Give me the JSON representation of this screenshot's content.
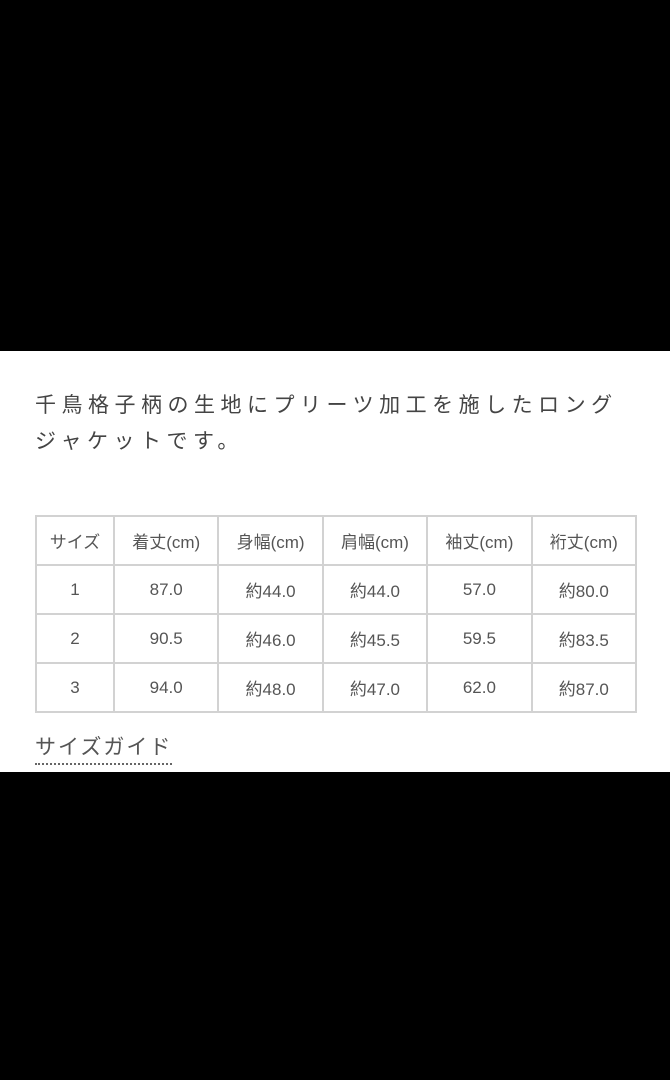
{
  "description": "千鳥格子柄の生地にプリーツ加工を施したロングジャケットです。",
  "size_table": {
    "headers": [
      "サイズ",
      "着丈(cm)",
      "身幅(cm)",
      "肩幅(cm)",
      "袖丈(cm)",
      "裄丈(cm)"
    ],
    "rows": [
      [
        "1",
        "87.0",
        "約44.0",
        "約44.0",
        "57.0",
        "約80.0"
      ],
      [
        "2",
        "90.5",
        "約46.0",
        "約45.5",
        "59.5",
        "約83.5"
      ],
      [
        "3",
        "94.0",
        "約48.0",
        "約47.0",
        "62.0",
        "約87.0"
      ]
    ]
  },
  "size_guide_link": "サイズガイド"
}
